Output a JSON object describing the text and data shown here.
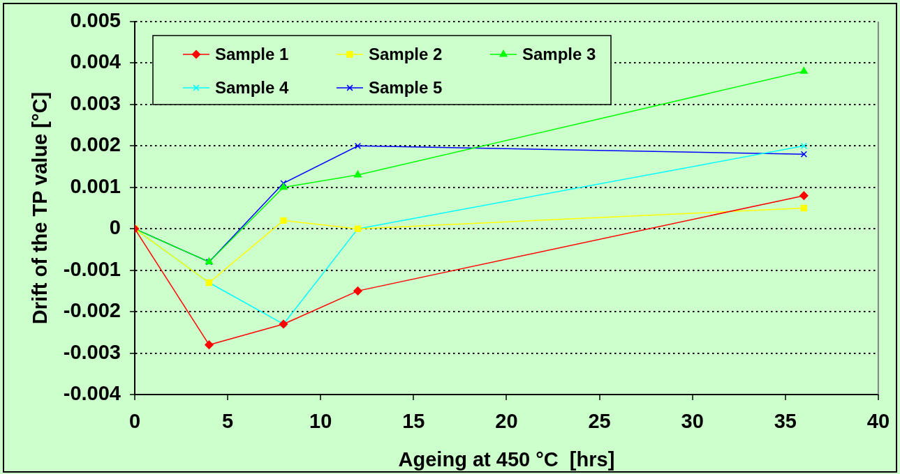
{
  "chart_data": {
    "type": "line",
    "x": [
      0,
      4,
      8,
      12,
      36
    ],
    "series": [
      {
        "name": "Sample 1",
        "color": "#ff0000",
        "marker": "diamond",
        "values": [
          0,
          -0.0028,
          -0.0023,
          -0.0015,
          0.0008
        ]
      },
      {
        "name": "Sample 2",
        "color": "#ffff00",
        "marker": "square",
        "values": [
          0,
          -0.0013,
          0.0002,
          0,
          0.0005
        ]
      },
      {
        "name": "Sample 3",
        "color": "#00ff00",
        "marker": "triangle",
        "values": [
          0,
          -0.0008,
          0.001,
          0.0013,
          0.0038
        ]
      },
      {
        "name": "Sample 4",
        "color": "#00ffff",
        "marker": "cross",
        "values": [
          0,
          -0.0013,
          -0.0023,
          0,
          0.002
        ]
      },
      {
        "name": "Sample 5",
        "color": "#0000ff",
        "marker": "cross",
        "values": [
          0,
          -0.0008,
          0.0011,
          0.002,
          0.0018
        ]
      }
    ],
    "xlabel": "Ageing at 450 °C  [hrs]",
    "ylabel": "Drift of the TP value [°C]",
    "xlim": [
      0,
      40
    ],
    "xticks": [
      0,
      5,
      10,
      15,
      20,
      25,
      30,
      35,
      40
    ],
    "ylim": [
      -0.004,
      0.005
    ],
    "yticks": [
      -0.004,
      -0.003,
      -0.002,
      -0.001,
      0,
      0.001,
      0.002,
      0.003,
      0.004,
      0.005
    ],
    "grid": "y",
    "legend": "top left"
  }
}
